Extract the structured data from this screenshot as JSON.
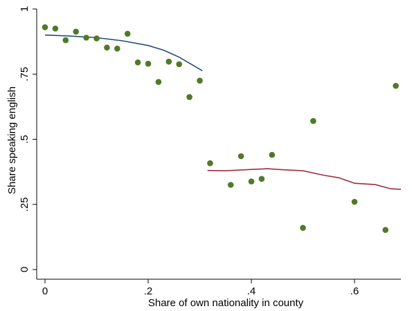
{
  "chart_data": {
    "type": "scatter",
    "title": "",
    "xlabel": "Share of own nationality in county",
    "ylabel": "Share speaking english",
    "xlim": [
      0,
      0.69
    ],
    "ylim": [
      0,
      1
    ],
    "x_ticks": [
      0,
      0.2,
      0.4,
      0.6
    ],
    "x_tick_labels": [
      "0",
      ".2",
      ".4",
      ".6"
    ],
    "y_ticks": [
      0,
      0.25,
      0.5,
      0.75,
      1
    ],
    "y_tick_labels": [
      "0",
      ".25",
      ".5",
      ".75",
      "1"
    ],
    "grid": false,
    "legend": "none",
    "points": [
      {
        "x": 0.0,
        "y": 0.93
      },
      {
        "x": 0.02,
        "y": 0.925
      },
      {
        "x": 0.04,
        "y": 0.88
      },
      {
        "x": 0.06,
        "y": 0.913
      },
      {
        "x": 0.08,
        "y": 0.89
      },
      {
        "x": 0.1,
        "y": 0.887
      },
      {
        "x": 0.12,
        "y": 0.852
      },
      {
        "x": 0.14,
        "y": 0.848
      },
      {
        "x": 0.16,
        "y": 0.905
      },
      {
        "x": 0.18,
        "y": 0.795
      },
      {
        "x": 0.2,
        "y": 0.79
      },
      {
        "x": 0.22,
        "y": 0.72
      },
      {
        "x": 0.24,
        "y": 0.798
      },
      {
        "x": 0.26,
        "y": 0.788
      },
      {
        "x": 0.28,
        "y": 0.662
      },
      {
        "x": 0.3,
        "y": 0.725
      },
      {
        "x": 0.32,
        "y": 0.408
      },
      {
        "x": 0.36,
        "y": 0.325
      },
      {
        "x": 0.38,
        "y": 0.435
      },
      {
        "x": 0.4,
        "y": 0.338
      },
      {
        "x": 0.42,
        "y": 0.348
      },
      {
        "x": 0.44,
        "y": 0.44
      },
      {
        "x": 0.5,
        "y": 0.16
      },
      {
        "x": 0.52,
        "y": 0.57
      },
      {
        "x": 0.6,
        "y": 0.26
      },
      {
        "x": 0.66,
        "y": 0.152
      },
      {
        "x": 0.68,
        "y": 0.705
      }
    ],
    "fit_lines": [
      {
        "color": "#1f4e79",
        "points": [
          [
            0.0,
            0.9
          ],
          [
            0.05,
            0.896
          ],
          [
            0.1,
            0.89
          ],
          [
            0.15,
            0.878
          ],
          [
            0.2,
            0.86
          ],
          [
            0.23,
            0.842
          ],
          [
            0.26,
            0.815
          ],
          [
            0.28,
            0.792
          ],
          [
            0.305,
            0.763
          ]
        ]
      },
      {
        "color": "#9b2d3f",
        "points": [
          [
            0.315,
            0.38
          ],
          [
            0.35,
            0.379
          ],
          [
            0.4,
            0.384
          ],
          [
            0.43,
            0.387
          ],
          [
            0.46,
            0.383
          ],
          [
            0.5,
            0.379
          ],
          [
            0.54,
            0.362
          ],
          [
            0.57,
            0.352
          ],
          [
            0.6,
            0.331
          ],
          [
            0.64,
            0.326
          ],
          [
            0.67,
            0.31
          ],
          [
            0.69,
            0.308
          ]
        ]
      }
    ],
    "marker_color": "#4f7a28"
  }
}
